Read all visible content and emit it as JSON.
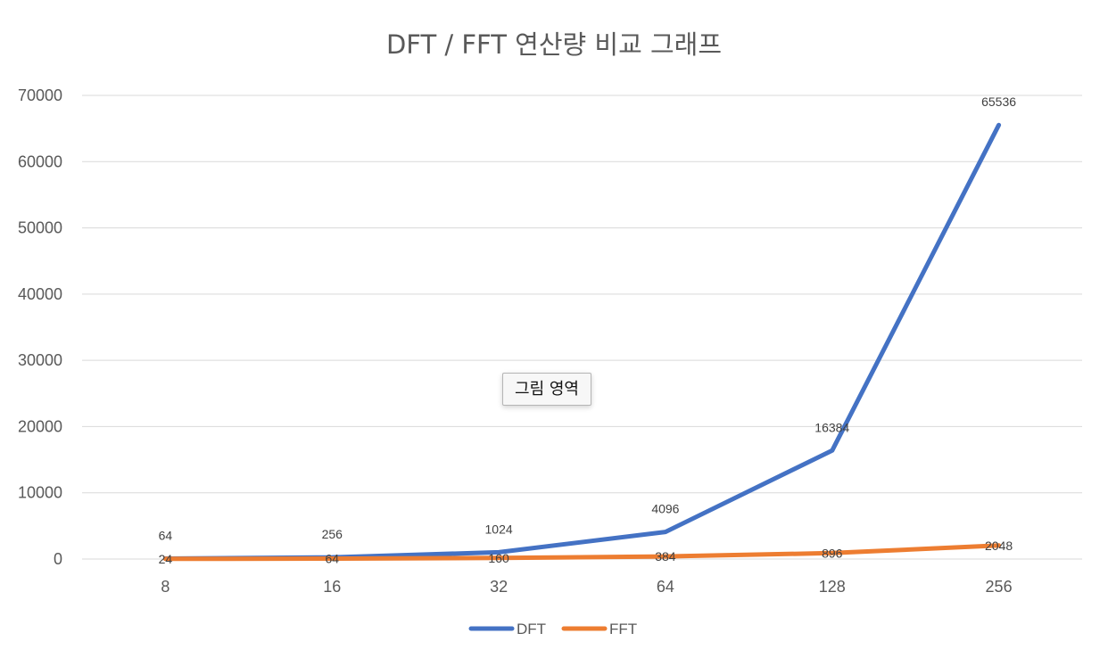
{
  "chart_data": {
    "type": "line",
    "title": "DFT / FFT 연산량 비교 그래프",
    "categories": [
      "8",
      "16",
      "32",
      "64",
      "128",
      "256"
    ],
    "series": [
      {
        "name": "DFT",
        "color": "#4472c4",
        "values": [
          64,
          256,
          1024,
          4096,
          16384,
          65536
        ],
        "labels": [
          "64",
          "256",
          "1024",
          "4096",
          "16384",
          "65536"
        ]
      },
      {
        "name": "FFT",
        "color": "#ed7d31",
        "values": [
          24,
          64,
          160,
          384,
          896,
          2048
        ],
        "labels": [
          "24",
          "64",
          "160",
          "384",
          "896",
          "2048"
        ]
      }
    ],
    "ylim": [
      0,
      70000
    ],
    "yticks": [
      0,
      10000,
      20000,
      30000,
      40000,
      50000,
      60000,
      70000
    ],
    "ytick_labels": [
      "0",
      "10000",
      "20000",
      "30000",
      "40000",
      "50000",
      "60000",
      "70000"
    ],
    "grid": true,
    "legend": "bottom"
  },
  "overlay": {
    "tooltip_text": "그림 영역"
  }
}
